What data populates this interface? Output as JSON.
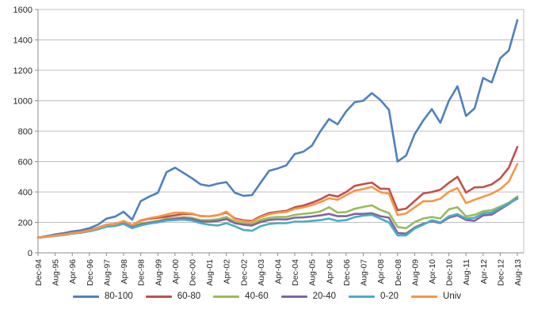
{
  "chart_data": {
    "type": "line",
    "title": "",
    "xlabel": "",
    "ylabel": "",
    "legend_position": "bottom",
    "grid": "horizontal",
    "background": "#FFFFFF",
    "y_axis": {
      "min": 0,
      "max": 1600,
      "step": 200,
      "ticks": [
        0,
        200,
        400,
        600,
        800,
        1000,
        1200,
        1400,
        1600
      ]
    },
    "x_axis": {
      "tick_labels": [
        "Dec-94",
        "Aug-95",
        "Apr-96",
        "Dec-96",
        "Aug-97",
        "Apr-98",
        "Dec-98",
        "Aug-99",
        "Apr-00",
        "Dec-00",
        "Aug-01",
        "Apr-02",
        "Dec-02",
        "Aug-03",
        "Apr-04",
        "Dec-04",
        "Aug-05",
        "Apr-06",
        "Dec-06",
        "Aug-07",
        "Apr-08",
        "Dec-08",
        "Aug-09",
        "Apr-10",
        "Dec-10",
        "Aug-11",
        "Apr-12",
        "Dec-12",
        "Aug-13"
      ]
    },
    "x": [
      "Dec-94",
      "Apr-95",
      "Aug-95",
      "Dec-95",
      "Apr-96",
      "Aug-96",
      "Dec-96",
      "Apr-97",
      "Aug-97",
      "Dec-97",
      "Apr-98",
      "Aug-98",
      "Dec-98",
      "Apr-99",
      "Aug-99",
      "Dec-99",
      "Apr-00",
      "Aug-00",
      "Dec-00",
      "Apr-01",
      "Aug-01",
      "Dec-01",
      "Apr-02",
      "Aug-02",
      "Dec-02",
      "Apr-03",
      "Aug-03",
      "Dec-03",
      "Apr-04",
      "Aug-04",
      "Dec-04",
      "Apr-05",
      "Aug-05",
      "Dec-05",
      "Apr-06",
      "Aug-06",
      "Dec-06",
      "Apr-07",
      "Aug-07",
      "Dec-07",
      "Apr-08",
      "Aug-08",
      "Dec-08",
      "Apr-09",
      "Aug-09",
      "Dec-09",
      "Apr-10",
      "Aug-10",
      "Dec-10",
      "Apr-11",
      "Aug-11",
      "Dec-11",
      "Apr-12",
      "Aug-12",
      "Dec-12",
      "Apr-13",
      "Aug-13"
    ],
    "series": [
      {
        "name": "80-100",
        "color": "#4F81BD",
        "values": [
          100,
          110,
          121,
          130,
          141,
          148,
          162,
          185,
          225,
          238,
          270,
          218,
          340,
          370,
          395,
          530,
          560,
          525,
          490,
          450,
          440,
          455,
          465,
          395,
          375,
          380,
          460,
          540,
          555,
          575,
          650,
          665,
          705,
          800,
          880,
          845,
          930,
          990,
          1000,
          1050,
          1005,
          940,
          600,
          640,
          780,
          870,
          945,
          855,
          1000,
          1095,
          900,
          950,
          1150,
          1120,
          1280,
          1330,
          1530
        ]
      },
      {
        "name": "60-80",
        "color": "#C0504D",
        "values": [
          100,
          107,
          115,
          122,
          132,
          138,
          150,
          165,
          185,
          190,
          207,
          182,
          212,
          224,
          230,
          238,
          247,
          255,
          255,
          242,
          240,
          248,
          265,
          226,
          214,
          210,
          240,
          262,
          270,
          276,
          300,
          311,
          330,
          352,
          382,
          370,
          400,
          440,
          452,
          462,
          422,
          420,
          281,
          291,
          341,
          390,
          400,
          415,
          460,
          500,
          396,
          430,
          432,
          450,
          490,
          560,
          696
        ]
      },
      {
        "name": "40-60",
        "color": "#9BBB59",
        "values": [
          100,
          106,
          113,
          120,
          129,
          135,
          146,
          160,
          178,
          182,
          198,
          172,
          192,
          202,
          210,
          224,
          230,
          235,
          230,
          215,
          215,
          220,
          236,
          205,
          194,
          190,
          216,
          230,
          236,
          236,
          250,
          256,
          262,
          272,
          300,
          265,
          268,
          290,
          302,
          312,
          282,
          262,
          170,
          162,
          202,
          226,
          236,
          226,
          286,
          300,
          240,
          250,
          274,
          280,
          304,
          330,
          370
        ]
      },
      {
        "name": "20-40",
        "color": "#8064A2",
        "values": [
          100,
          106,
          112,
          119,
          128,
          134,
          144,
          158,
          175,
          180,
          193,
          168,
          186,
          196,
          205,
          218,
          222,
          228,
          222,
          208,
          205,
          210,
          222,
          195,
          185,
          180,
          202,
          216,
          221,
          219,
          231,
          233,
          239,
          246,
          256,
          241,
          241,
          256,
          256,
          261,
          241,
          231,
          131,
          126,
          166,
          191,
          208,
          196,
          231,
          246,
          216,
          211,
          246,
          251,
          286,
          321,
          360
        ]
      },
      {
        "name": "0-20",
        "color": "#4BACC6",
        "values": [
          100,
          105,
          111,
          117,
          126,
          132,
          142,
          155,
          172,
          176,
          190,
          162,
          180,
          192,
          200,
          212,
          215,
          218,
          212,
          195,
          185,
          180,
          195,
          175,
          150,
          145,
          175,
          190,
          195,
          195,
          205,
          205,
          210,
          215,
          225,
          210,
          215,
          235,
          245,
          250,
          225,
          200,
          115,
          115,
          160,
          185,
          215,
          200,
          240,
          255,
          225,
          230,
          260,
          265,
          295,
          325,
          355
        ]
      },
      {
        "name": "Univ",
        "color": "#F79646",
        "values": [
          100,
          106,
          114,
          120,
          130,
          136,
          148,
          163,
          184,
          189,
          210,
          184,
          214,
          228,
          238,
          252,
          264,
          264,
          258,
          241,
          240,
          246,
          271,
          221,
          209,
          205,
          234,
          254,
          264,
          269,
          289,
          299,
          314,
          334,
          359,
          349,
          379,
          409,
          419,
          434,
          399,
          389,
          249,
          259,
          299,
          339,
          339,
          356,
          401,
          426,
          327,
          349,
          369,
          389,
          419,
          469,
          584
        ]
      }
    ]
  },
  "style_colors": {
    "gridline": "#BFBFBF",
    "axis": "#8C8C8C",
    "tick_text": "#262626"
  }
}
